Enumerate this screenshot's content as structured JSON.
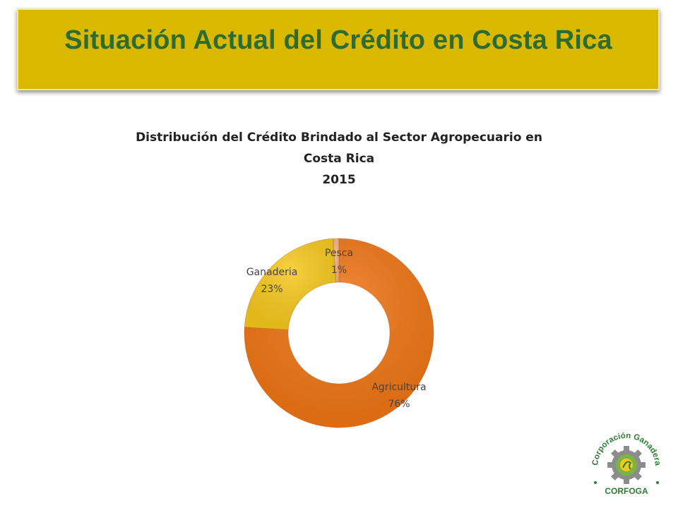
{
  "slide": {
    "title": "Situación Actual del Crédito en Costa Rica"
  },
  "chart_data": {
    "type": "pie",
    "donut": true,
    "title_lines": [
      "Distribución del Crédito Brindado al Sector Agropecuario en",
      "Costa Rica",
      "2015"
    ],
    "categories": [
      "Agricultura",
      "Ganaderia",
      "Pesca"
    ],
    "values": [
      76,
      23,
      1
    ],
    "value_labels": [
      "76%",
      "23%",
      "1%"
    ],
    "colors": [
      "#ef7413",
      "#f6c81c",
      "#f2b07c"
    ],
    "legend": "none"
  },
  "logo": {
    "top_text": "Corporación Ganadera",
    "bottom_text": "CORFOGA"
  }
}
